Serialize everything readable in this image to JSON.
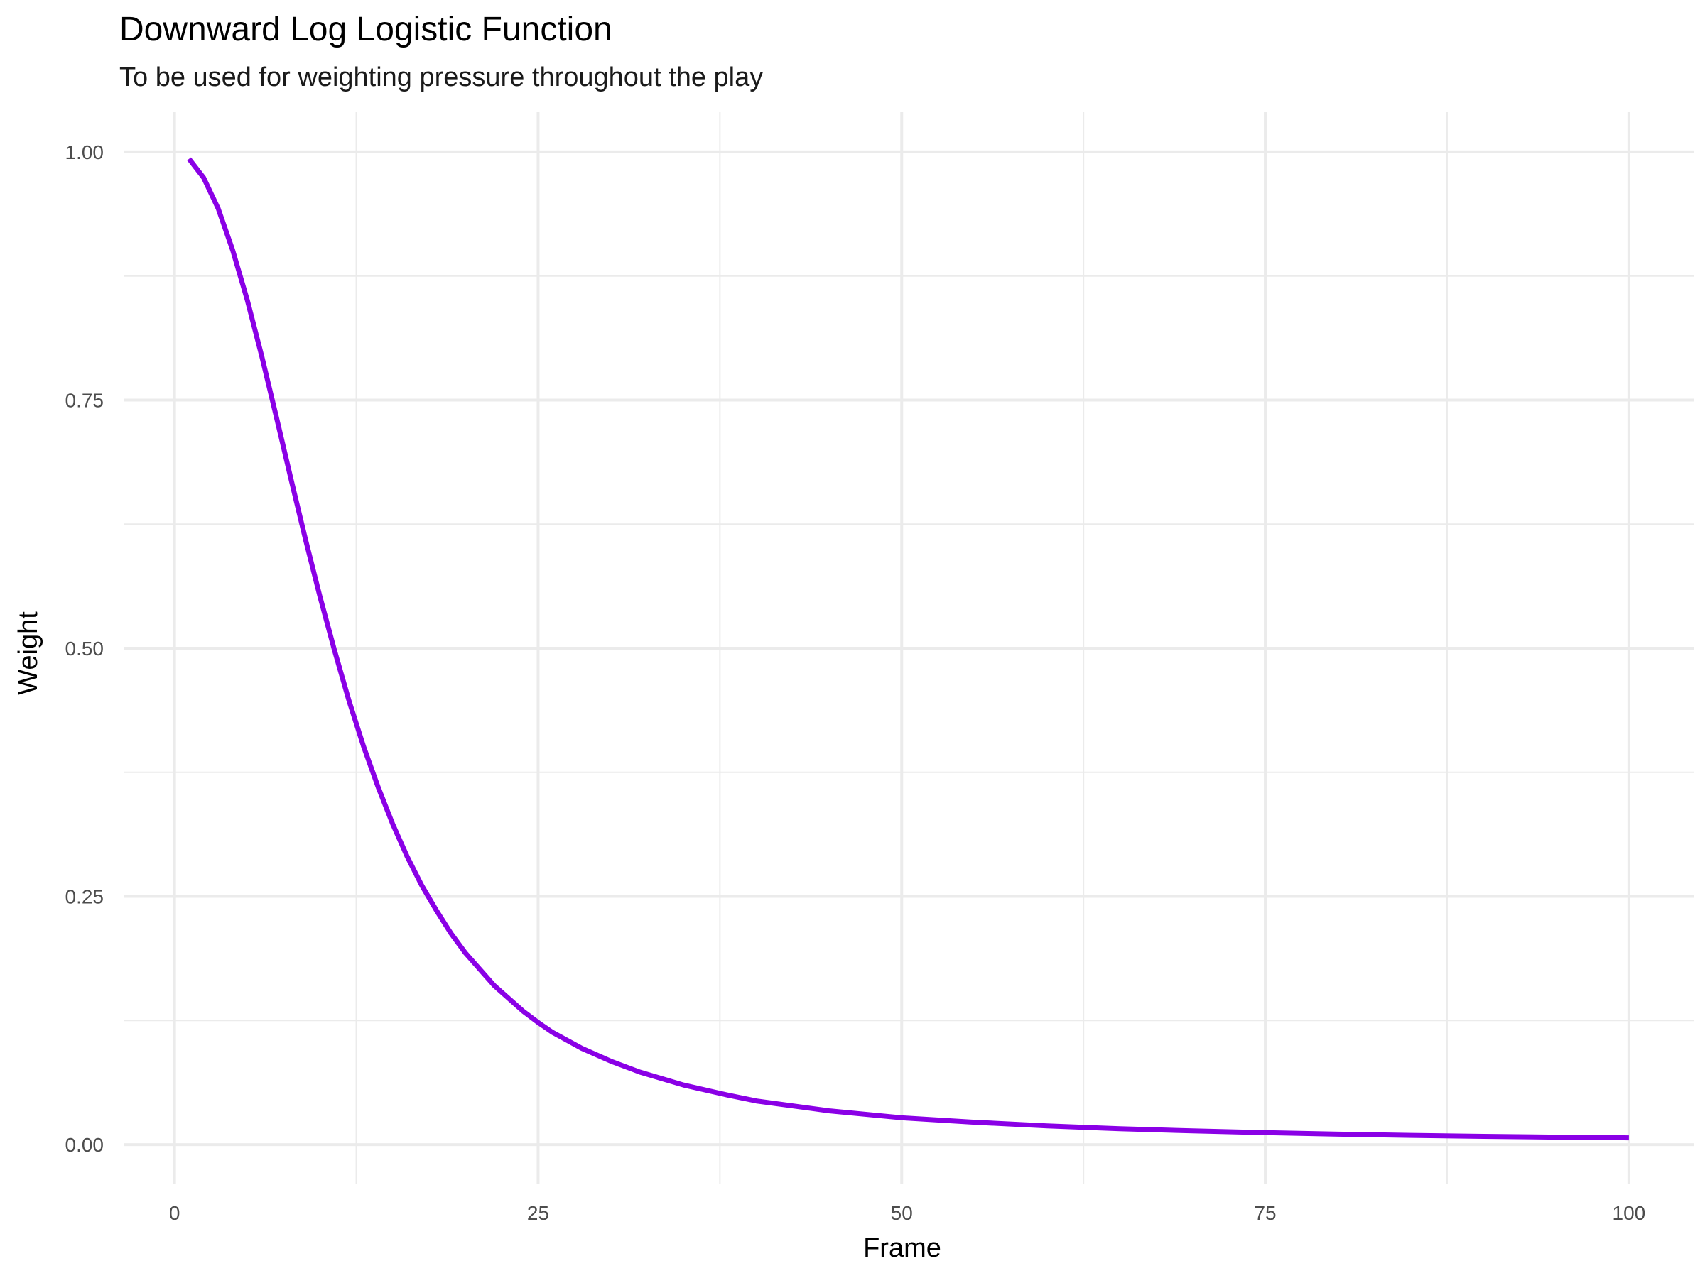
{
  "chart_data": {
    "type": "line",
    "title": "Downward Log Logistic Function",
    "subtitle": "To be used for weighting pressure throughout the play",
    "xlabel": "Frame",
    "ylabel": "Weight",
    "xlim": [
      -3.5,
      104.5
    ],
    "ylim": [
      -0.04,
      1.04
    ],
    "x_ticks": [
      0,
      25,
      50,
      75,
      100
    ],
    "x_tick_labels": [
      "0",
      "25",
      "50",
      "75",
      "100"
    ],
    "y_ticks": [
      0,
      0.25,
      0.5,
      0.75,
      1
    ],
    "y_tick_labels": [
      "0.00",
      "0.25",
      "0.50",
      "0.75",
      "1.00"
    ],
    "x_minor": [
      12.5,
      37.5,
      62.5,
      87.5
    ],
    "y_minor": [
      0.125,
      0.375,
      0.625,
      0.875
    ],
    "grid": true,
    "legend": "none",
    "colors": {
      "line": "#8A00E6",
      "grid": "#EBEBEB",
      "tick_text": "#4D4D4D"
    },
    "series": [
      {
        "x": [
          1,
          2,
          3,
          4,
          5,
          6,
          7,
          8,
          9,
          10,
          11,
          12,
          13,
          14,
          15,
          16,
          17,
          18,
          19,
          20,
          22,
          24,
          25,
          26,
          28,
          30,
          32,
          35,
          38,
          40,
          45,
          50,
          55,
          60,
          65,
          70,
          75,
          80,
          85,
          90,
          95,
          100
        ],
        "values": [
          0.993,
          0.974,
          0.943,
          0.901,
          0.851,
          0.794,
          0.733,
          0.671,
          0.61,
          0.552,
          0.498,
          0.447,
          0.401,
          0.36,
          0.323,
          0.29,
          0.261,
          0.236,
          0.213,
          0.193,
          0.16,
          0.134,
          0.123,
          0.113,
          0.097,
          0.084,
          0.073,
          0.06,
          0.05,
          0.044,
          0.034,
          0.027,
          0.0225,
          0.0188,
          0.016,
          0.0138,
          0.012,
          0.0105,
          0.0093,
          0.0083,
          0.0075,
          0.0068
        ]
      }
    ]
  }
}
